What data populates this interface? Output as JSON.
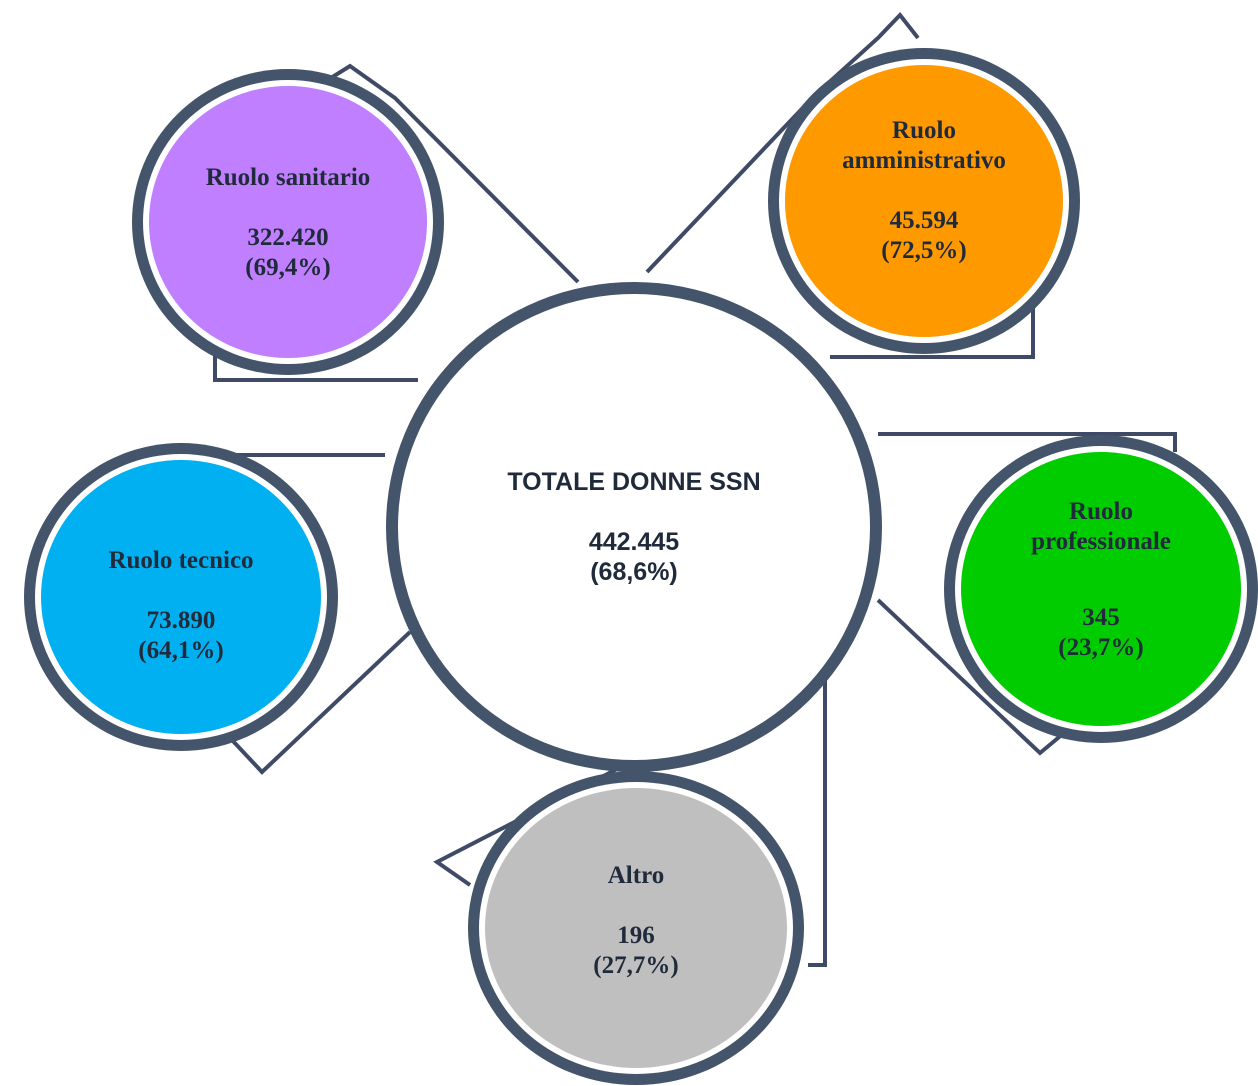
{
  "center": {
    "title": "TOTALE DONNE SSN",
    "value": "442.445",
    "pct": "(68,6%)",
    "fill": "#ffffff"
  },
  "nodes": [
    {
      "id": "sanitario",
      "title_lines": [
        "Ruolo sanitario"
      ],
      "value": "322.420",
      "pct": "(69,4%)",
      "fill": "#bf7fff"
    },
    {
      "id": "amministrativo",
      "title_lines": [
        "Ruolo",
        "amministrativo"
      ],
      "value": "45.594",
      "pct": "(72,5%)",
      "fill": "#ff9900"
    },
    {
      "id": "tecnico",
      "title_lines": [
        "Ruolo tecnico"
      ],
      "value": "73.890",
      "pct": "(64,1%)",
      "fill": "#00b0f0"
    },
    {
      "id": "professionale",
      "title_lines": [
        "Ruolo",
        "professionale"
      ],
      "value": "345",
      "pct": "(23,7%)",
      "fill": "#00cc00"
    },
    {
      "id": "altro",
      "title_lines": [
        "Altro"
      ],
      "value": "196",
      "pct": "(27,7%)",
      "fill": "#bfbfbf"
    }
  ],
  "colors": {
    "ring": "#44546a",
    "connector": "#3f4a66"
  }
}
